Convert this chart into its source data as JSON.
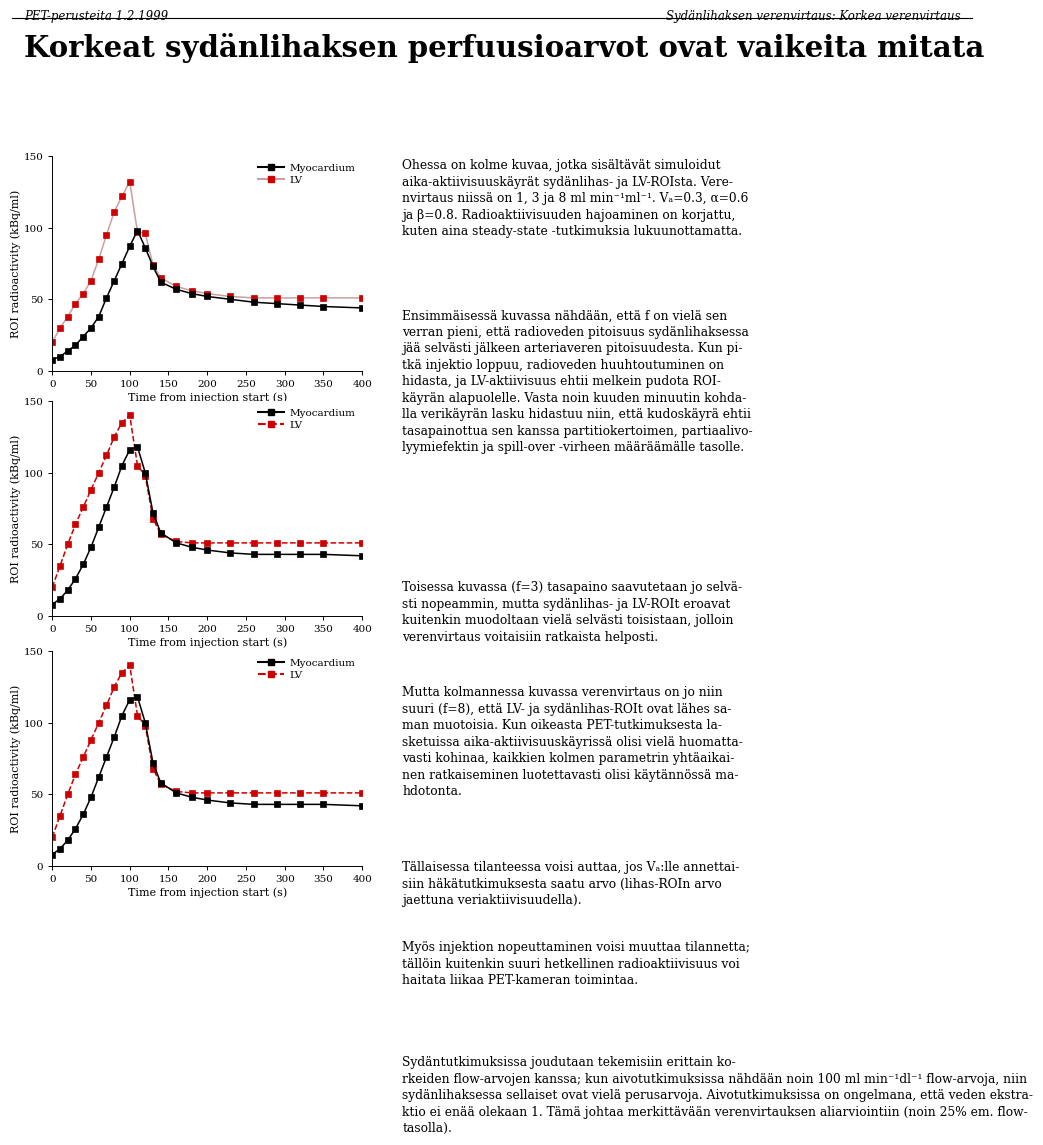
{
  "header_left": "PET-perusteita 1.2.1999",
  "header_right": "Sydänlihaksen verenvirtaus: Korkea verenvirtaus",
  "main_title": "Korkeat sydänlihaksen perfuusioarvot ovat vaikeita mitata",
  "ylabel": "ROI radioactivity (kBq/ml)",
  "xlabel": "Time from injection start (s)",
  "ylim": [
    0,
    150
  ],
  "xlim": [
    0,
    400
  ],
  "xticks": [
    0,
    50,
    100,
    150,
    200,
    250,
    300,
    350,
    400
  ],
  "yticks": [
    0,
    50,
    100,
    150
  ],
  "time": [
    0,
    10,
    20,
    30,
    40,
    50,
    60,
    70,
    80,
    90,
    100,
    110,
    120,
    130,
    140,
    160,
    180,
    200,
    230,
    260,
    290,
    320,
    350,
    400
  ],
  "myo1": [
    8,
    10,
    14,
    18,
    24,
    30,
    38,
    51,
    63,
    75,
    87,
    98,
    86,
    73,
    62,
    57,
    54,
    52,
    50,
    48,
    47,
    46,
    45,
    44
  ],
  "lv1": [
    20,
    30,
    38,
    47,
    54,
    63,
    78,
    95,
    111,
    122,
    132,
    97,
    96,
    74,
    65,
    59,
    56,
    54,
    52,
    51,
    51,
    51,
    51,
    51
  ],
  "myo2": [
    8,
    12,
    18,
    26,
    36,
    48,
    62,
    76,
    90,
    105,
    116,
    118,
    100,
    72,
    58,
    51,
    48,
    46,
    44,
    43,
    43,
    43,
    43,
    42
  ],
  "lv2": [
    20,
    35,
    50,
    64,
    76,
    88,
    100,
    112,
    125,
    135,
    140,
    105,
    98,
    68,
    57,
    52,
    51,
    51,
    51,
    51,
    51,
    51,
    51,
    51
  ],
  "myo3": [
    8,
    12,
    18,
    26,
    36,
    48,
    62,
    76,
    90,
    105,
    116,
    118,
    100,
    72,
    58,
    51,
    48,
    46,
    44,
    43,
    43,
    43,
    43,
    42
  ],
  "lv3": [
    20,
    35,
    50,
    64,
    76,
    88,
    100,
    112,
    125,
    135,
    140,
    105,
    98,
    68,
    57,
    52,
    51,
    51,
    51,
    51,
    51,
    51,
    51,
    51
  ],
  "myo_color": "#000000",
  "lv_color_plot1": "#c8a0a0",
  "lv_color_plot23": "#cc0000",
  "bg_color": "#ffffff",
  "text_p1": "Ohessa on kolme kuvaa, jotka sisältävät simuloidut\naika-aktiivisuuskäyrät sydänlihas- ja LV-ROIsta. Vere-\nnvirtaus niissä on 1, 3 ja 8 ml min⁻¹ml⁻¹. Vₐ=0.3, α=0.6\nja β=0.8. Radioaktiivisuuden hajoaminen on korjattu,\nkuten aina steady-state -tutkimuksia lukuunottamatta.",
  "text_p2": "Ensimmäisessä kuvassa nähdään, että f on vielä sen\nverran pieni, että radioveden pitoisuus sydänlihaksessa\njää selvästi jälkeen arteriaveren pitoisuudesta. Kun pi-\ntkä injektio loppuu, radioveden huuhtoutuminen on\nhidasta, ja LV-aktiivisuus ehtii melkein pudota ROI-\nkäyrän alapuolelle. Vasta noin kuuden minuutin kohda-\nlla verikäyrän lasku hidastuu niin, että kudoskäyrä ehtii\ntasapainottua sen kanssa partitiokertoimen, partiaalivo-\nlyymiefektin ja spill-over -virheen määräämälle tasolle.",
  "text_p3": "Toisessa kuvassa (f=3) tasapaino saavutetaan jo selvä-\nsti nopeammin, mutta sydänlihas- ja LV-ROIt eroavat\nkuitenkin muodoltaan vielä selvästi toisistaan, jolloin\nverenvirtaus voitaisiin ratkaista helposti.",
  "text_p4": "Mutta kolmannessa kuvassa verenvirtaus on jo niin\nsuuri (f=8), että LV- ja sydänlihas-ROIt ovat lähes sa-\nman muotoisia. Kun oikeasta PET-tutkimuksesta la-\nsketuissa aika-aktiivisuuskäyrissä olisi vielä huomatta-\nvasti kohinaa, kaikkien kolmen parametrin yhtäaikai-\nnen ratkaiseminen luotettavasti olisi käytännössä ma-\nhdotonta.",
  "text_p5": "Tällaisessa tilanteessa voisi auttaa, jos Vₐ:lle annettai-\nsiin häkätutkimuksesta saatu arvo (lihas-ROIn arvo\njaettuna veriaktiivisuudella).",
  "text_p6": "Myös injektion nopeuttaminen voisi muuttaa tilannetta;\ntällöin kuitenkin suuri hetkellinen radioaktiivisuus voi\nhaitata liikaa PET-kameran toimintaa.",
  "text_p7_line1": "Sydäntutkimuksissa joudutaan tekemisiin erittain ko-",
  "text_p7_rest": "rkeiden flow-arvojen kanssa; kun aivotutkimuksissa nähdään noin 100 ml min⁻¹dl⁻¹ flow-arvoja, niin\nsydänlihaksessa sellaiset ovat vielä perusarvoja. Aivotutkimuksissa on ongelmana, että veden ekstra-\nktio ei enää olekaan 1. Tämä johtaa merkittävään verenvirtauksen aliarviointiin (noin 25% em. flow-\ntasolla)."
}
